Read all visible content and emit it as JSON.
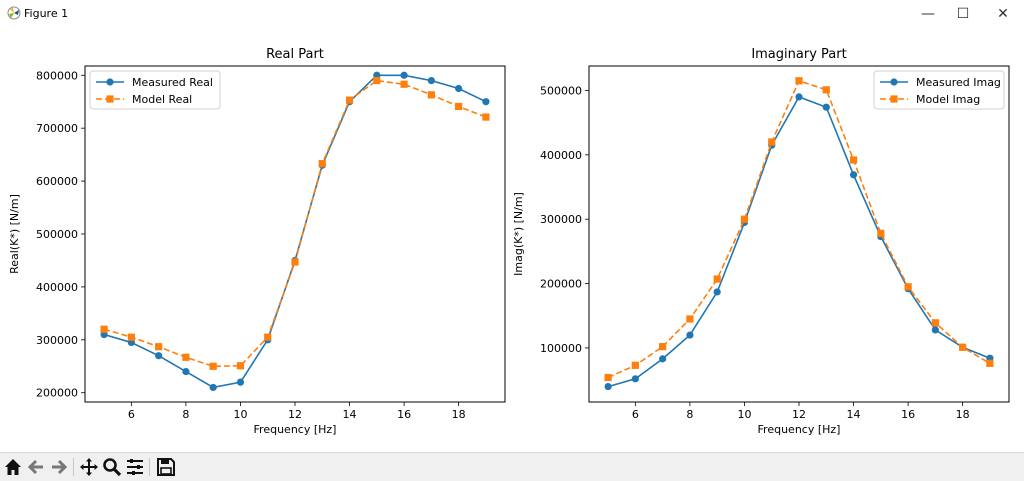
{
  "window": {
    "title": "Figure 1",
    "buttons": [
      {
        "name": "minimize-button",
        "glyph": "—"
      },
      {
        "name": "maximize-button",
        "glyph": "☐"
      },
      {
        "name": "close-button",
        "glyph": "✕"
      }
    ]
  },
  "toolbar": {
    "icons": [
      "home-icon",
      "back-icon",
      "forward-icon",
      "pan-icon",
      "zoom-icon",
      "configure-subplots-icon",
      "save-icon"
    ]
  },
  "chart_data": [
    {
      "type": "line",
      "title": "Real Part",
      "xlabel": "Frequency [Hz]",
      "ylabel": "Real(K*) [N/m]",
      "xlim": [
        4.3,
        19.7
      ],
      "ylim": [
        182500,
        817500
      ],
      "xticks": [
        6,
        8,
        10,
        12,
        14,
        16,
        18
      ],
      "yticks": [
        200000,
        300000,
        400000,
        500000,
        600000,
        700000,
        800000
      ],
      "legend": "top-left",
      "x": [
        5,
        6,
        7,
        8,
        9,
        10,
        11,
        12,
        13,
        14,
        15,
        16,
        17,
        18,
        19
      ],
      "series": [
        {
          "name": "Measured Real",
          "style": "solid",
          "marker": "circle",
          "color": "#1f77b4",
          "values": [
            310000,
            295000,
            270000,
            240000,
            210000,
            220000,
            300000,
            450000,
            630000,
            750000,
            800000,
            800000,
            790000,
            775000,
            750000
          ]
        },
        {
          "name": "Model Real",
          "style": "dashed",
          "marker": "square",
          "color": "#ff7f0e",
          "values": [
            320000,
            305000,
            287000,
            267000,
            250000,
            251000,
            305000,
            447000,
            633000,
            753000,
            790000,
            783000,
            763000,
            741000,
            721000
          ]
        }
      ]
    },
    {
      "type": "line",
      "title": "Imaginary Part",
      "xlabel": "Frequency [Hz]",
      "ylabel": "Imag(K*) [N/m]",
      "xlim": [
        4.3,
        19.7
      ],
      "ylim": [
        16000,
        538000
      ],
      "xticks": [
        6,
        8,
        10,
        12,
        14,
        16,
        18
      ],
      "yticks": [
        100000,
        200000,
        300000,
        400000,
        500000
      ],
      "legend": "top-right",
      "x": [
        5,
        6,
        7,
        8,
        9,
        10,
        11,
        12,
        13,
        14,
        15,
        16,
        17,
        18,
        19
      ],
      "series": [
        {
          "name": "Measured Imag",
          "style": "solid",
          "marker": "circle",
          "color": "#1f77b4",
          "values": [
            40000,
            52000,
            83000,
            120000,
            187000,
            295000,
            415000,
            490000,
            474000,
            369000,
            273000,
            192000,
            128000,
            101000,
            84000
          ]
        },
        {
          "name": "Model Imag",
          "style": "dashed",
          "marker": "square",
          "color": "#ff7f0e",
          "values": [
            54000,
            73000,
            102000,
            145000,
            207000,
            300000,
            420000,
            515000,
            501000,
            392000,
            278000,
            195000,
            139000,
            101000,
            76000
          ]
        }
      ]
    }
  ]
}
